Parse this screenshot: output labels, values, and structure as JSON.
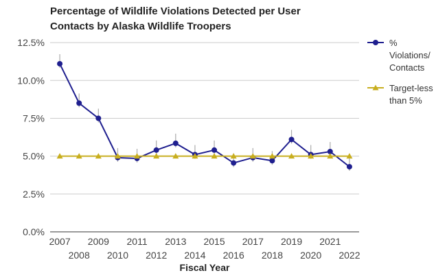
{
  "chart_data": {
    "type": "line",
    "title_lines": [
      "Percentage of Wildlife Violations Detected per User",
      "Contacts by Alaska Wildlife Troopers"
    ],
    "xlabel": "Fiscal Year",
    "ylabel": "",
    "categories": [
      "2007",
      "2008",
      "2009",
      "2010",
      "2011",
      "2012",
      "2013",
      "2014",
      "2015",
      "2016",
      "2017",
      "2018",
      "2019",
      "2020",
      "2021",
      "2022"
    ],
    "y_ticks": [
      "0.0%",
      "2.5%",
      "5.0%",
      "7.5%",
      "10.0%",
      "12.5%"
    ],
    "ylim": [
      0,
      13.5
    ],
    "grid": true,
    "legend_position": "right",
    "series": [
      {
        "name_lines": [
          "%",
          "Violations/",
          "Contacts"
        ],
        "color": "#1f1f8f",
        "marker": "circle",
        "error_bars": true,
        "values": [
          11.1,
          8.5,
          7.5,
          4.9,
          4.85,
          5.4,
          5.85,
          5.1,
          5.4,
          4.55,
          4.9,
          4.7,
          6.1,
          5.1,
          5.3,
          4.3
        ]
      },
      {
        "name_lines": [
          "Target-less",
          "than 5%"
        ],
        "color": "#c8ae1e",
        "marker": "triangle",
        "values": [
          5,
          5,
          5,
          5,
          5,
          5,
          5,
          5,
          5,
          5,
          5,
          5,
          5,
          5,
          5,
          5
        ]
      }
    ]
  }
}
